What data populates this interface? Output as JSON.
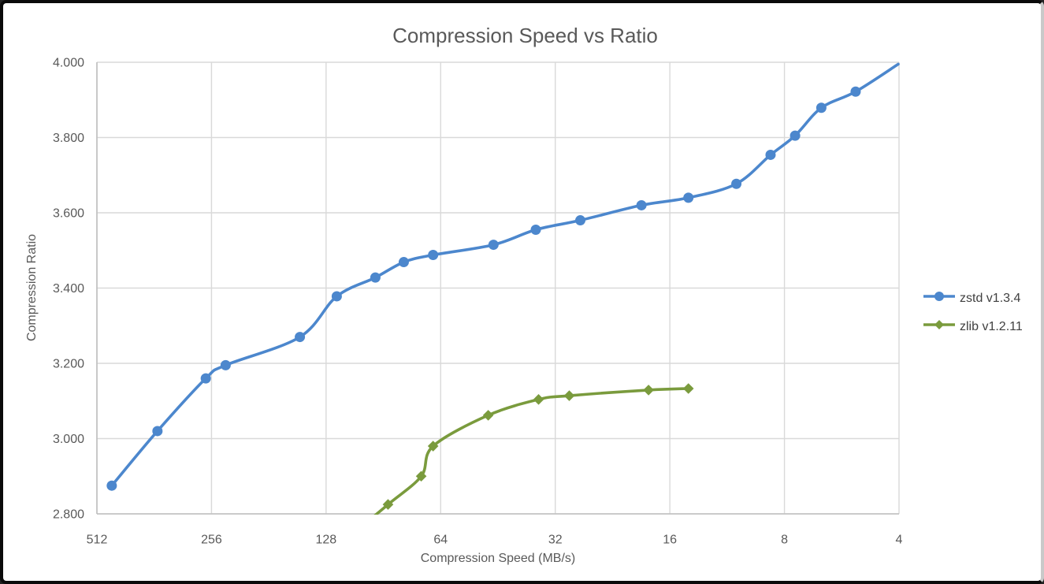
{
  "window": {
    "background": "#ffffff",
    "frame_border_color": "#0a0a0a"
  },
  "chart_data": {
    "type": "line",
    "title": "Compression Speed vs Ratio",
    "xlabel": "Compression Speed (MB/s)",
    "ylabel": "Compression Ratio",
    "x_scale": "log2_reversed",
    "xlim": [
      512,
      4
    ],
    "ylim": [
      2.8,
      4.0
    ],
    "grid": true,
    "legend_position": "right-middle",
    "x_ticks": {
      "values": [
        512,
        256,
        128,
        64,
        32,
        16,
        8,
        4
      ],
      "labels": [
        "512",
        "256",
        "128",
        "64",
        "32",
        "16",
        "8",
        "4"
      ]
    },
    "y_ticks": {
      "values": [
        2.8,
        3.0,
        3.2,
        3.4,
        3.6,
        3.8,
        4.0
      ],
      "labels": [
        "2.800",
        "3.000",
        "3.200",
        "3.400",
        "3.600",
        "3.800",
        "4.000"
      ]
    },
    "colors": {
      "grid": "#d9d9d9",
      "axis": "#bfbfbf",
      "text": "#595959"
    },
    "series": [
      {
        "name": "zstd v1.3.4",
        "color": "#4c87cd",
        "marker": "circle",
        "points": [
          [
            468,
            2.875
          ],
          [
            355,
            3.02
          ],
          [
            265,
            3.16
          ],
          [
            235,
            3.195
          ],
          [
            150,
            3.27
          ],
          [
            120,
            3.378
          ],
          [
            95,
            3.428
          ],
          [
            80,
            3.469
          ],
          [
            67,
            3.488
          ],
          [
            46.5,
            3.515
          ],
          [
            36,
            3.555
          ],
          [
            27.5,
            3.58
          ],
          [
            19,
            3.62
          ],
          [
            14.3,
            3.64
          ],
          [
            10.7,
            3.677
          ],
          [
            8.7,
            3.754
          ],
          [
            7.5,
            3.805
          ],
          [
            6.4,
            3.879
          ],
          [
            5.2,
            3.922
          ],
          [
            4.02,
            3.995,
            0
          ]
        ]
      },
      {
        "name": "zlib v1.2.11",
        "color": "#7a9b3d",
        "marker": "diamond",
        "points": [
          [
            110,
            2.743
          ],
          [
            88,
            2.825
          ],
          [
            72,
            2.9
          ],
          [
            67,
            2.98
          ],
          [
            48,
            3.062
          ],
          [
            35.4,
            3.104
          ],
          [
            29.4,
            3.114
          ],
          [
            18.2,
            3.129
          ],
          [
            14.3,
            3.133
          ]
        ]
      }
    ]
  }
}
